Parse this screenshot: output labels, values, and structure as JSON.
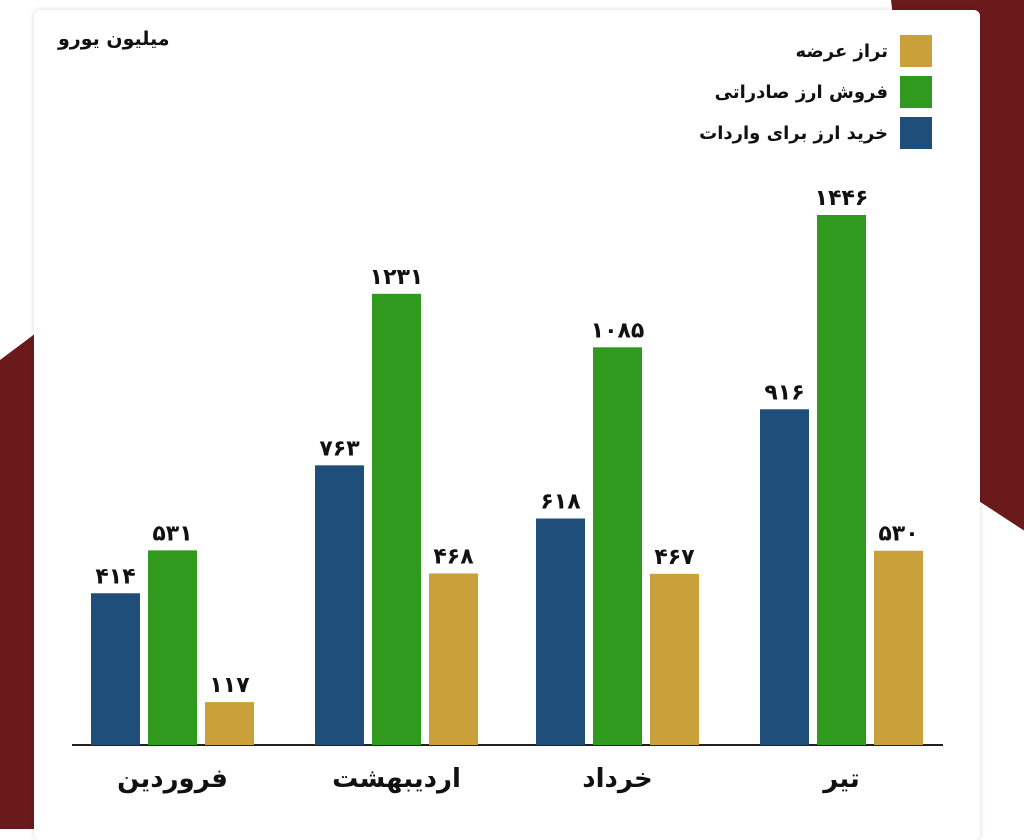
{
  "unit_label": "میلیون یورو",
  "colors": {
    "import": "#1f4e7a",
    "export": "#2f9a1d",
    "balance": "#c9a03a",
    "accent_bg": "#6b1a1c"
  },
  "legend": [
    {
      "key": "balance",
      "label": "تراز عرضه"
    },
    {
      "key": "export",
      "label": "فروش ارز صادراتی"
    },
    {
      "key": "import",
      "label": "خرید ارز برای واردات"
    }
  ],
  "chart_data": {
    "type": "bar",
    "categories": [
      "فروردین",
      "اردیبهشت",
      "خرداد",
      "تیر"
    ],
    "series": [
      {
        "name": "خرید ارز برای واردات",
        "key": "import",
        "values": [
          414,
          763,
          618,
          916
        ],
        "labels": [
          "۴۱۴",
          "۷۶۳",
          "۶۱۸",
          "۹۱۶"
        ]
      },
      {
        "name": "فروش ارز صادراتی",
        "key": "export",
        "values": [
          531,
          1231,
          1085,
          1446
        ],
        "labels": [
          "۵۳۱",
          "۱۲۳۱",
          "۱۰۸۵",
          "۱۴۴۶"
        ]
      },
      {
        "name": "تراز عرضه",
        "key": "balance",
        "values": [
          117,
          468,
          467,
          530
        ],
        "labels": [
          "۱۱۷",
          "۴۶۸",
          "۴۶۷",
          "۵۳۰"
        ]
      }
    ],
    "ylabel": "میلیون یورو",
    "ylim": [
      0,
      1446
    ],
    "grid": false,
    "legend_position": "top-right"
  }
}
